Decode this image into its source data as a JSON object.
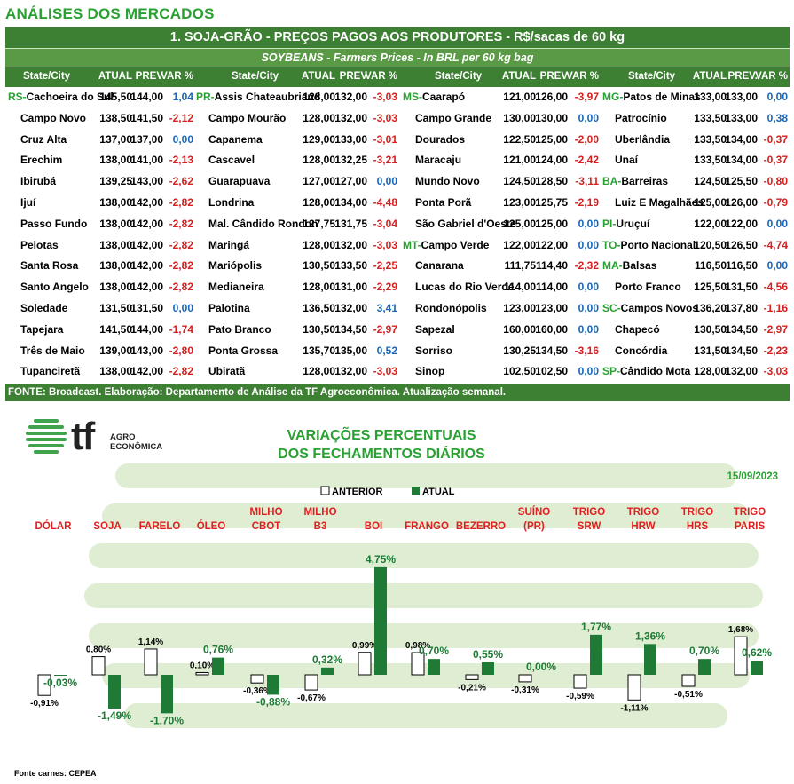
{
  "section_title": "ANÁLISES DOS MERCADOS",
  "table": {
    "title": "1. SOJA-GRÃO - PREÇOS PAGOS AOS PRODUTORES - R$/sacas de 60 kg",
    "subtitle": "SOYBEANS - Farmers Prices - In BRL per 60 kg bag",
    "groups": [
      {
        "headers": [
          "State/City",
          "ATUAL",
          "PREV",
          "VAR %"
        ],
        "rows": [
          {
            "state": "RS",
            "city": "Cachoeira do Sul",
            "atual": "145,50",
            "prev": "144,00",
            "var": "1,04"
          },
          {
            "state": "",
            "city": "Campo Novo",
            "atual": "138,50",
            "prev": "141,50",
            "var": "-2,12"
          },
          {
            "state": "",
            "city": "Cruz Alta",
            "atual": "137,00",
            "prev": "137,00",
            "var": "0,00"
          },
          {
            "state": "",
            "city": "Erechim",
            "atual": "138,00",
            "prev": "141,00",
            "var": "-2,13"
          },
          {
            "state": "",
            "city": "Ibirubá",
            "atual": "139,25",
            "prev": "143,00",
            "var": "-2,62"
          },
          {
            "state": "",
            "city": "Ijuí",
            "atual": "138,00",
            "prev": "142,00",
            "var": "-2,82"
          },
          {
            "state": "",
            "city": "Passo Fundo",
            "atual": "138,00",
            "prev": "142,00",
            "var": "-2,82"
          },
          {
            "state": "",
            "city": "Pelotas",
            "atual": "138,00",
            "prev": "142,00",
            "var": "-2,82"
          },
          {
            "state": "",
            "city": "Santa Rosa",
            "atual": "138,00",
            "prev": "142,00",
            "var": "-2,82"
          },
          {
            "state": "",
            "city": "Santo Angelo",
            "atual": "138,00",
            "prev": "142,00",
            "var": "-2,82"
          },
          {
            "state": "",
            "city": "Soledade",
            "atual": "131,50",
            "prev": "131,50",
            "var": "0,00"
          },
          {
            "state": "",
            "city": "Tapejara",
            "atual": "141,50",
            "prev": "144,00",
            "var": "-1,74"
          },
          {
            "state": "",
            "city": "Três de Maio",
            "atual": "139,00",
            "prev": "143,00",
            "var": "-2,80"
          },
          {
            "state": "",
            "city": "Tupanciretã",
            "atual": "138,00",
            "prev": "142,00",
            "var": "-2,82"
          }
        ]
      },
      {
        "headers": [
          "State/City",
          "ATUAL",
          "PREV",
          "VAR %"
        ],
        "rows": [
          {
            "state": "PR",
            "city": "Assis Chateaubriand",
            "atual": "128,00",
            "prev": "132,00",
            "var": "-3,03"
          },
          {
            "state": "",
            "city": "Campo Mourão",
            "atual": "128,00",
            "prev": "132,00",
            "var": "-3,03"
          },
          {
            "state": "",
            "city": "Capanema",
            "atual": "129,00",
            "prev": "133,00",
            "var": "-3,01"
          },
          {
            "state": "",
            "city": "Cascavel",
            "atual": "128,00",
            "prev": "132,25",
            "var": "-3,21"
          },
          {
            "state": "",
            "city": "Guarapuava",
            "atual": "127,00",
            "prev": "127,00",
            "var": "0,00"
          },
          {
            "state": "",
            "city": "Londrina",
            "atual": "128,00",
            "prev": "134,00",
            "var": "-4,48"
          },
          {
            "state": "",
            "city": "Mal. Cândido Rondon",
            "atual": "127,75",
            "prev": "131,75",
            "var": "-3,04"
          },
          {
            "state": "",
            "city": "Maringá",
            "atual": "128,00",
            "prev": "132,00",
            "var": "-3,03"
          },
          {
            "state": "",
            "city": "Mariópolis",
            "atual": "130,50",
            "prev": "133,50",
            "var": "-2,25"
          },
          {
            "state": "",
            "city": "Medianeira",
            "atual": "128,00",
            "prev": "131,00",
            "var": "-2,29"
          },
          {
            "state": "",
            "city": "Palotina",
            "atual": "136,50",
            "prev": "132,00",
            "var": "3,41"
          },
          {
            "state": "",
            "city": "Pato Branco",
            "atual": "130,50",
            "prev": "134,50",
            "var": "-2,97"
          },
          {
            "state": "",
            "city": "Ponta Grossa",
            "atual": "135,70",
            "prev": "135,00",
            "var": "0,52"
          },
          {
            "state": "",
            "city": "Ubiratã",
            "atual": "128,00",
            "prev": "132,00",
            "var": "-3,03"
          }
        ]
      },
      {
        "headers": [
          "State/City",
          "ATUAL",
          "PREV",
          "VAR %"
        ],
        "rows": [
          {
            "state": "MS",
            "city": "Caarapó",
            "atual": "121,00",
            "prev": "126,00",
            "var": "-3,97"
          },
          {
            "state": "",
            "city": "Campo Grande",
            "atual": "130,00",
            "prev": "130,00",
            "var": "0,00"
          },
          {
            "state": "",
            "city": "Dourados",
            "atual": "122,50",
            "prev": "125,00",
            "var": "-2,00"
          },
          {
            "state": "",
            "city": "Maracaju",
            "atual": "121,00",
            "prev": "124,00",
            "var": "-2,42"
          },
          {
            "state": "",
            "city": "Mundo Novo",
            "atual": "124,50",
            "prev": "128,50",
            "var": "-3,11"
          },
          {
            "state": "",
            "city": "Ponta Porã",
            "atual": "123,00",
            "prev": "125,75",
            "var": "-2,19"
          },
          {
            "state": "",
            "city": "São Gabriel d'Oeste",
            "atual": "125,00",
            "prev": "125,00",
            "var": "0,00"
          },
          {
            "state": "MT",
            "city": "Campo Verde",
            "atual": "122,00",
            "prev": "122,00",
            "var": "0,00"
          },
          {
            "state": "",
            "city": "Canarana",
            "atual": "111,75",
            "prev": "114,40",
            "var": "-2,32"
          },
          {
            "state": "",
            "city": "Lucas do Rio Verde",
            "atual": "114,00",
            "prev": "114,00",
            "var": "0,00"
          },
          {
            "state": "",
            "city": "Rondonópolis",
            "atual": "123,00",
            "prev": "123,00",
            "var": "0,00"
          },
          {
            "state": "",
            "city": "Sapezal",
            "atual": "160,00",
            "prev": "160,00",
            "var": "0,00"
          },
          {
            "state": "",
            "city": "Sorriso",
            "atual": "130,25",
            "prev": "134,50",
            "var": "-3,16"
          },
          {
            "state": "",
            "city": "Sinop",
            "atual": "102,50",
            "prev": "102,50",
            "var": "0,00"
          }
        ]
      },
      {
        "headers": [
          "State/City",
          "ATUAL",
          "PREV.",
          "VAR %"
        ],
        "rows": [
          {
            "state": "MG",
            "city": "Patos de Minas",
            "atual": "133,00",
            "prev": "133,00",
            "var": "0,00"
          },
          {
            "state": "",
            "city": "Patrocínio",
            "atual": "133,50",
            "prev": "133,00",
            "var": "0,38"
          },
          {
            "state": "",
            "city": "Uberlândia",
            "atual": "133,50",
            "prev": "134,00",
            "var": "-0,37"
          },
          {
            "state": "",
            "city": "Unaí",
            "atual": "133,50",
            "prev": "134,00",
            "var": "-0,37"
          },
          {
            "state": "BA",
            "city": "Barreiras",
            "atual": "124,50",
            "prev": "125,50",
            "var": "-0,80"
          },
          {
            "state": "",
            "city": "Luiz E Magalhães",
            "atual": "125,00",
            "prev": "126,00",
            "var": "-0,79"
          },
          {
            "state": "PI",
            "city": "Uruçuí",
            "atual": "122,00",
            "prev": "122,00",
            "var": "0,00"
          },
          {
            "state": "TO",
            "city": "Porto Nacional",
            "atual": "120,50",
            "prev": "126,50",
            "var": "-4,74"
          },
          {
            "state": "MA",
            "city": "Balsas",
            "atual": "116,50",
            "prev": "116,50",
            "var": "0,00"
          },
          {
            "state": "",
            "city": "Porto Franco",
            "atual": "125,50",
            "prev": "131,50",
            "var": "-4,56"
          },
          {
            "state": "SC",
            "city": "Campos Novos",
            "atual": "136,20",
            "prev": "137,80",
            "var": "-1,16"
          },
          {
            "state": "",
            "city": "Chapecó",
            "atual": "130,50",
            "prev": "134,50",
            "var": "-2,97"
          },
          {
            "state": "",
            "city": "Concórdia",
            "atual": "131,50",
            "prev": "134,50",
            "var": "-2,23"
          },
          {
            "state": "SP",
            "city": "Cândido Mota",
            "atual": "128,00",
            "prev": "132,00",
            "var": "-3,03"
          }
        ]
      }
    ],
    "footer": "FONTE: Broadcast. Elaboração: Departamento de Análise da TF Agroeconômica. Atualização semanal."
  },
  "logo": {
    "mark": "tf",
    "line1": "AGRO",
    "line2": "ECONÔMICA"
  },
  "chart_data": {
    "type": "bar",
    "title_line1": "VARIAÇÕES PERCENTUAIS",
    "title_line2": "DOS FECHAMENTOS DIÁRIOS",
    "date": "15/09/2023",
    "categories": [
      [
        "DÓLAR"
      ],
      [
        "SOJA"
      ],
      [
        "FARELO"
      ],
      [
        "ÓLEO"
      ],
      [
        "MILHO",
        "CBOT"
      ],
      [
        "MILHO",
        "B3"
      ],
      [
        "BOI"
      ],
      [
        "FRANGO"
      ],
      [
        "BEZERRO"
      ],
      [
        "SUÍNO",
        "(PR)"
      ],
      [
        "TRIGO",
        "SRW"
      ],
      [
        "TRIGO",
        "HRW"
      ],
      [
        "TRIGO",
        "HRS"
      ],
      [
        "TRIGO",
        "PARIS"
      ]
    ],
    "series": [
      {
        "name": "ANTERIOR",
        "color": "#ffffff",
        "values": [
          -0.91,
          0.8,
          1.14,
          0.1,
          -0.36,
          -0.67,
          0.99,
          0.98,
          -0.21,
          -0.31,
          -0.59,
          -1.11,
          -0.51,
          1.68
        ],
        "labels": [
          "-0,91%",
          "0,80%",
          "1,14%",
          "0,10%",
          "-0,36%",
          "-0,67%",
          "0,99%",
          "0,98%",
          "-0,21%",
          "-0,31%",
          "-0,59%",
          "-1,11%",
          "-0,51%",
          "1,68%"
        ]
      },
      {
        "name": "ATUAL",
        "color": "#1e7a35",
        "values": [
          -0.03,
          -1.49,
          -1.7,
          0.76,
          -0.88,
          0.32,
          4.75,
          0.7,
          0.55,
          0.0,
          1.77,
          1.36,
          0.7,
          0.62
        ],
        "labels": [
          "-0,03%",
          "-1,49%",
          "-1,70%",
          "0,76%",
          "-0,88%",
          "0,32%",
          "4,75%",
          "0,70%",
          "0,55%",
          "0,00%",
          "1,77%",
          "1,36%",
          "0,70%",
          "0,62%"
        ]
      }
    ],
    "legend_position": "top-center",
    "colors": {
      "category_label": "#e02020",
      "title": "#2aa033",
      "atual": "#1e7a35"
    }
  },
  "source_note": "Fonte carnes: CEPEA"
}
